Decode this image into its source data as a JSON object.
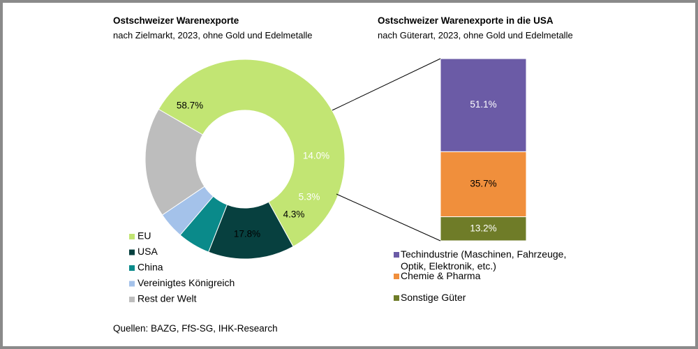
{
  "chart_data": [
    {
      "type": "pie",
      "variant": "donut",
      "title": "Ostschweizer Warenexporte",
      "subtitle": "nach Zielmarkt, 2023, ohne Gold und Edelmetalle",
      "slices": [
        {
          "name": "EU",
          "value": 58.7,
          "label": "58.7%",
          "color": "#c2e573",
          "label_color": "#000000"
        },
        {
          "name": "USA",
          "value": 14.0,
          "label": "14.0%",
          "color": "#07403f",
          "label_color": "#ffffff"
        },
        {
          "name": "China",
          "value": 5.3,
          "label": "5.3%",
          "color": "#0a8a8a",
          "label_color": "#ffffff"
        },
        {
          "name": "Vereinigtes Königreich",
          "value": 4.3,
          "label": "4.3%",
          "color": "#a4c2ea",
          "label_color": "#000000"
        },
        {
          "name": "Rest der Welt",
          "value": 17.8,
          "label": "17.8%",
          "color": "#bdbdbd",
          "label_color": "#000000"
        }
      ],
      "legend_position": "bottom-left"
    },
    {
      "type": "bar",
      "variant": "stacked-100",
      "title": "Ostschweizer Warenexporte in die USA",
      "subtitle": "nach Güterart, 2023, ohne Gold und Edelmetalle",
      "segments": [
        {
          "name": "Techindustrie (Maschinen, Fahrzeuge, Optik, Elektronik, etc.)",
          "legend_lines": [
            "Techindustrie (Maschinen, Fahrzeuge,",
            "Optik, Elektronik, etc.)"
          ],
          "value": 51.1,
          "label": "51.1%",
          "color": "#6b5ba6",
          "label_color": "#ffffff"
        },
        {
          "name": "Chemie & Pharma",
          "legend_lines": [
            "Chemie & Pharma"
          ],
          "value": 35.7,
          "label": "35.7%",
          "color": "#f08f3c",
          "label_color": "#000000"
        },
        {
          "name": "Sonstige Güter",
          "legend_lines": [
            "Sonstige Güter"
          ],
          "value": 13.2,
          "label": "13.2%",
          "color": "#6f7c28",
          "label_color": "#ffffff"
        }
      ],
      "legend_position": "bottom"
    }
  ],
  "source": "Quellen: BAZG, FfS-SG, IHK-Research",
  "colors": {
    "connector": "#000000",
    "frame": "#8a8a8a"
  }
}
